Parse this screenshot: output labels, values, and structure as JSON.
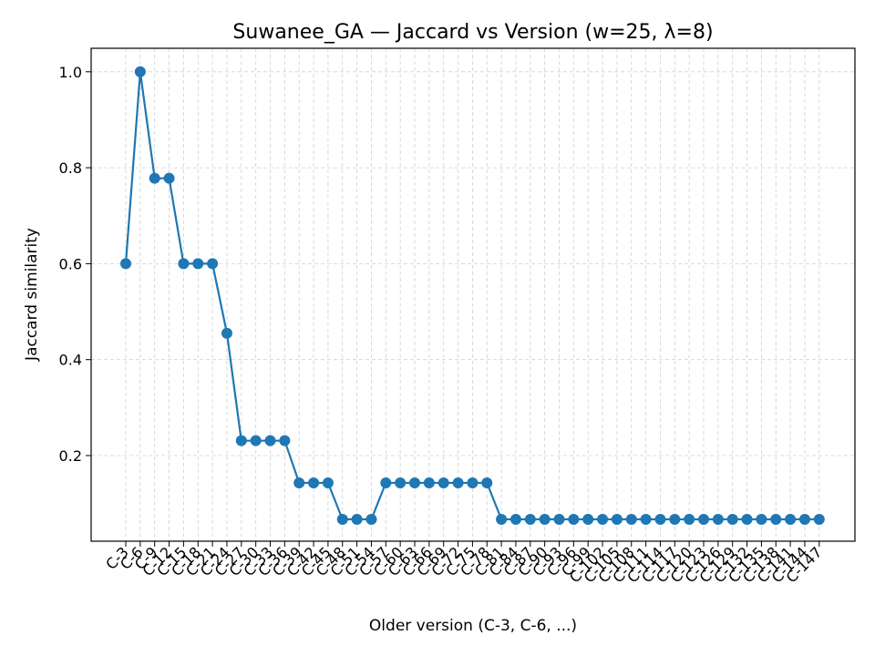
{
  "chart_data": {
    "type": "line",
    "title": "Suwanee_GA — Jaccard vs Version (w=25, λ=8)",
    "xlabel": "Older version (C-3, C-6, ...)",
    "ylabel": "Jaccard similarity",
    "categories": [
      "C-3",
      "C-6",
      "C-9",
      "C-12",
      "C-15",
      "C-18",
      "C-21",
      "C-24",
      "C-27",
      "C-30",
      "C-33",
      "C-36",
      "C-39",
      "C-42",
      "C-45",
      "C-48",
      "C-51",
      "C-54",
      "C-57",
      "C-60",
      "C-63",
      "C-66",
      "C-69",
      "C-72",
      "C-75",
      "C-78",
      "C-81",
      "C-84",
      "C-87",
      "C-90",
      "C-93",
      "C-96",
      "C-99",
      "C-102",
      "C-105",
      "C-108",
      "C-111",
      "C-114",
      "C-117",
      "C-120",
      "C-123",
      "C-126",
      "C-129",
      "C-132",
      "C-135",
      "C-138",
      "C-141",
      "C-144",
      "C-147"
    ],
    "values": [
      0.6,
      1.0,
      0.778,
      0.778,
      0.6,
      0.6,
      0.6,
      0.455,
      0.231,
      0.231,
      0.231,
      0.231,
      0.143,
      0.143,
      0.143,
      0.067,
      0.067,
      0.067,
      0.143,
      0.143,
      0.143,
      0.143,
      0.143,
      0.143,
      0.143,
      0.143,
      0.067,
      0.067,
      0.067,
      0.067,
      0.067,
      0.067,
      0.067,
      0.067,
      0.067,
      0.067,
      0.067,
      0.067,
      0.067,
      0.067,
      0.067,
      0.067,
      0.067,
      0.067,
      0.067,
      0.067,
      0.067,
      0.067,
      0.067
    ],
    "yticks": [
      "0.2",
      "0.4",
      "0.6",
      "0.8",
      "1.0"
    ],
    "ylim": [
      0.02,
      1.05
    ],
    "grid": true,
    "line_color": "#1f77b4",
    "grid_color": "#b0b0b0"
  }
}
